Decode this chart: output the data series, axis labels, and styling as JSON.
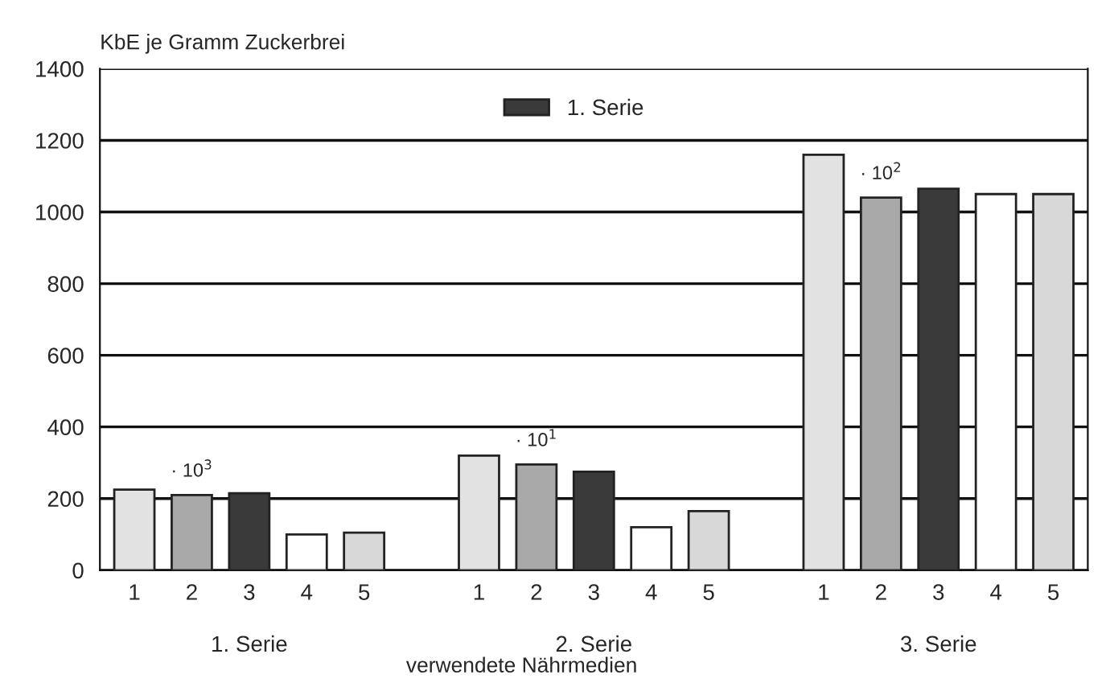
{
  "chart_data": {
    "type": "bar",
    "ylabel": "KbE je Gramm Zuckerbrei",
    "xlabel": "verwendete Nährmedien",
    "categories": [
      "1",
      "2",
      "3",
      "4",
      "5",
      null,
      "1",
      "2",
      "3",
      "4",
      "5",
      null,
      "1",
      "2",
      "3",
      "4",
      "5"
    ],
    "series": [
      {
        "name": "1. Serie",
        "color": "#3a3a3a",
        "values": [
          225,
          210,
          215,
          100,
          105,
          null,
          320,
          295,
          275,
          120,
          165,
          null,
          1160,
          1040,
          1065,
          1050,
          1050
        ],
        "colors": [
          "#e2e2e2",
          "#a9a9a9",
          "#3a3a3a",
          "#ffffff",
          "#d8d8d8",
          null,
          "#e2e2e2",
          "#a9a9a9",
          "#3a3a3a",
          "#ffffff",
          "#d8d8d8",
          null,
          "#e2e2e2",
          "#a9a9a9",
          "#3a3a3a",
          "#ffffff",
          "#d8d8d8"
        ]
      }
    ],
    "ylim": [
      0,
      1400
    ],
    "yticks": [
      0,
      200,
      400,
      600,
      800,
      1000,
      1200,
      1400
    ],
    "grid": "y",
    "legend": "top",
    "annotations": [
      "· 10$^{3}$",
      "· 10$^{1}$",
      "· 10$^{2}$",
      "1. Serie",
      "2. Serie",
      "3. Serie"
    ]
  }
}
